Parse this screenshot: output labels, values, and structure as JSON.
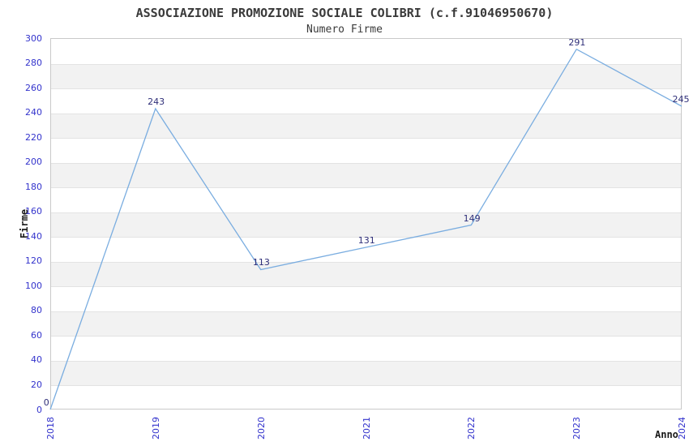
{
  "chart_data": {
    "type": "line",
    "title": "ASSOCIAZIONE PROMOZIONE SOCIALE COLIBRI (c.f.91046950670)",
    "subtitle": "Numero Firme",
    "xlabel": "Anno",
    "ylabel": "Firme",
    "categories": [
      "2018",
      "2019",
      "2020",
      "2021",
      "2022",
      "2023",
      "2024"
    ],
    "values": [
      0,
      243,
      113,
      131,
      149,
      291,
      245
    ],
    "data_labels": [
      "0",
      "243",
      "113",
      "131",
      "149",
      "291",
      "245"
    ],
    "ylim": [
      0,
      300
    ],
    "ytick_step": 20,
    "ytick_labels": [
      "0",
      "20",
      "40",
      "60",
      "80",
      "100",
      "120",
      "140",
      "160",
      "180",
      "200",
      "220",
      "240",
      "260",
      "280",
      "300"
    ],
    "grid": "horizontal-bands-alternating",
    "legend": "none",
    "colors": {
      "line": "#7aade0",
      "tick_label": "#3333cc",
      "data_label": "#2e2e78",
      "band_fill": "#f2f2f2",
      "grid_line": "#e3e3e3",
      "plot_border": "#c9c9c9",
      "title_text": "#3a3a3a",
      "axis_title_text": "#1a1a1a",
      "background": "#ffffff"
    }
  }
}
